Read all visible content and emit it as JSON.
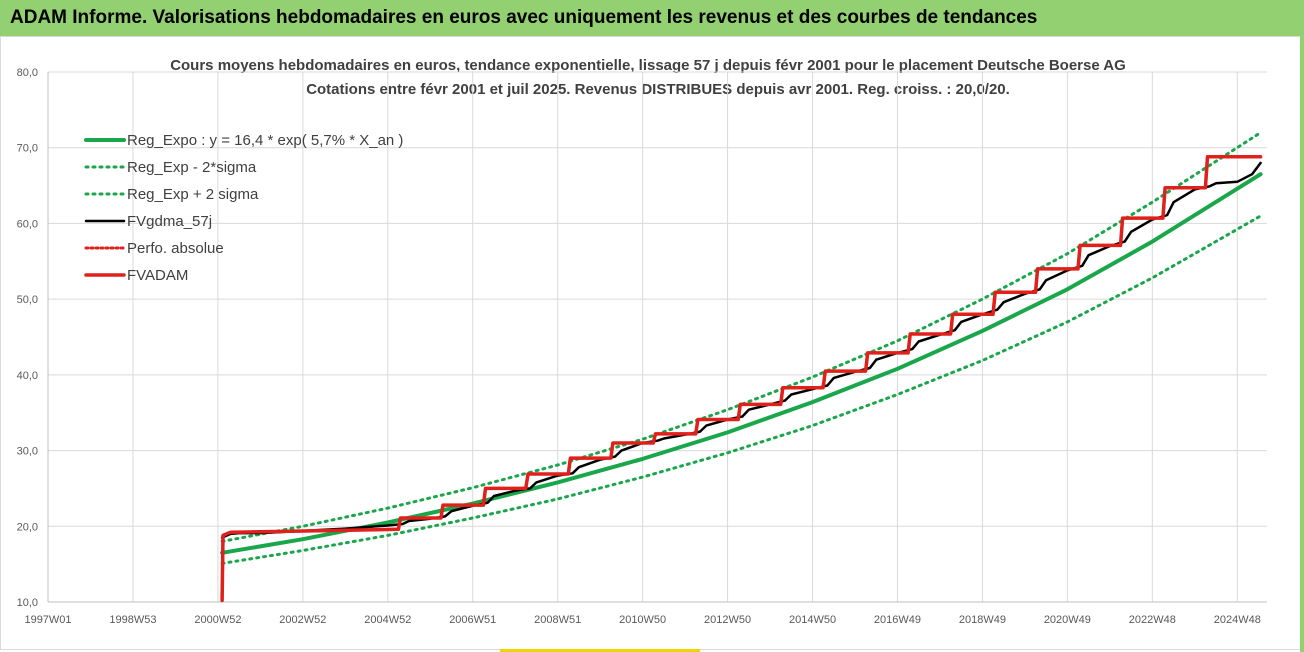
{
  "header": {
    "title": "ADAM Informe. Valorisations hebdomadaires en euros avec uniquement les revenus et des courbes de tendances"
  },
  "chart_data": {
    "type": "line",
    "title_lines": [
      "Cours moyens hebdomadaires en euros, tendance exponentielle, lissage 57 j depuis févr 2001 pour le placement Deutsche Boerse AG",
      "Cotations entre févr 2001 et juil 2025. Revenus DISTRIBUES depuis avr 2001. Reg. croiss. : 20,0/20."
    ],
    "x_tick_labels": [
      "1997W01",
      "1998W53",
      "2000W52",
      "2002W52",
      "2004W52",
      "2006W51",
      "2008W51",
      "2010W50",
      "2012W50",
      "2014W50",
      "2016W49",
      "2018W49",
      "2020W49",
      "2022W48",
      "2024W48"
    ],
    "x_tick_years": [
      1997.0,
      1999.0,
      2001.0,
      2003.0,
      2005.0,
      2007.0,
      2009.0,
      2011.0,
      2013.0,
      2015.0,
      2017.0,
      2019.0,
      2021.0,
      2023.0,
      2025.0
    ],
    "xlim": [
      1997.0,
      2025.7
    ],
    "y_tick_labels": [
      "10,0",
      "20,0",
      "30,0",
      "40,0",
      "50,0",
      "60,0",
      "70,0",
      "80,0"
    ],
    "ylim": [
      10,
      80
    ],
    "legend_position": "top-left",
    "series": [
      {
        "name": "Reg_Expo : y = 16,4 * exp( 5,7% *  X_an )",
        "color": "#1aa64a",
        "style": "solid",
        "x": [
          2001.1,
          2003,
          2005,
          2007,
          2009,
          2011,
          2013,
          2015,
          2017,
          2019,
          2021,
          2023,
          2025.55
        ],
        "y": [
          16.5,
          18.3,
          20.5,
          23.0,
          25.8,
          28.9,
          32.4,
          36.4,
          40.8,
          45.8,
          51.3,
          57.6,
          66.5
        ]
      },
      {
        "name": "Reg_Exp - 2*sigma",
        "color": "#1aa64a",
        "style": "dotted",
        "x": [
          2001.1,
          2003,
          2005,
          2007,
          2009,
          2011,
          2013,
          2015,
          2017,
          2019,
          2021,
          2023,
          2025.55
        ],
        "y": [
          15.1,
          16.8,
          18.8,
          21.1,
          23.6,
          26.5,
          29.7,
          33.3,
          37.4,
          41.9,
          47.0,
          52.8,
          61.0
        ]
      },
      {
        "name": "Reg_Exp + 2 sigma",
        "color": "#1aa64a",
        "style": "dotted",
        "x": [
          2001.1,
          2003,
          2005,
          2007,
          2009,
          2011,
          2013,
          2015,
          2017,
          2019,
          2021,
          2023,
          2025.55
        ],
        "y": [
          18.0,
          20.0,
          22.4,
          25.1,
          28.1,
          31.5,
          35.4,
          39.7,
          44.5,
          50.0,
          56.0,
          62.8,
          72.0
        ]
      },
      {
        "name": "FVgdma_57j",
        "color": "#000000",
        "style": "solid",
        "x": [
          2001.1,
          2001.3,
          2001.5,
          2002,
          2004,
          2005,
          2005.35,
          2005.5,
          2006,
          2006.35,
          2006.5,
          2007,
          2007.35,
          2007.5,
          2008,
          2008.35,
          2008.5,
          2009,
          2009.35,
          2009.5,
          2010,
          2010.35,
          2010.5,
          2011,
          2011.35,
          2011.5,
          2012,
          2012.35,
          2012.5,
          2013,
          2013.35,
          2013.5,
          2014,
          2014.35,
          2014.5,
          2015,
          2015.35,
          2015.5,
          2016,
          2016.35,
          2016.5,
          2017,
          2017.35,
          2017.5,
          2018,
          2018.35,
          2018.5,
          2019,
          2019.35,
          2019.5,
          2020,
          2020.35,
          2020.5,
          2021,
          2021.35,
          2021.5,
          2022,
          2022.35,
          2022.5,
          2023,
          2023.35,
          2023.5,
          2024,
          2024.35,
          2024.5,
          2025,
          2025.35,
          2025.55
        ],
        "y": [
          18.5,
          19.0,
          19.1,
          19.1,
          19.7,
          20.1,
          20.3,
          20.7,
          21.0,
          21.3,
          22.0,
          22.7,
          23.1,
          24.0,
          24.7,
          25.0,
          25.8,
          26.7,
          27.0,
          27.8,
          28.8,
          29.2,
          30.0,
          31.0,
          31.3,
          31.6,
          32.1,
          32.5,
          33.3,
          34.1,
          34.5,
          35.4,
          36.1,
          36.6,
          37.4,
          38.1,
          38.6,
          39.6,
          40.4,
          40.9,
          42.0,
          42.9,
          43.4,
          44.4,
          45.3,
          45.9,
          47.0,
          48.0,
          48.6,
          49.6,
          50.7,
          51.3,
          52.5,
          53.8,
          54.4,
          55.8,
          57.0,
          57.6,
          58.9,
          60.5,
          61.1,
          62.8,
          64.5,
          64.9,
          65.3,
          65.5,
          66.5,
          68.0
        ]
      },
      {
        "name": "Perfo. absolue",
        "color": "#e0201b",
        "style": "dotted",
        "x": [
          2001.1,
          2001.12,
          2001.3,
          2005.25,
          2005.3,
          2006.25,
          2006.3,
          2007.25,
          2007.3,
          2008.25,
          2008.3,
          2009.25,
          2009.3,
          2010.25,
          2010.3,
          2011.25,
          2011.3,
          2012.25,
          2012.3,
          2013.25,
          2013.3,
          2014.25,
          2014.3,
          2015.25,
          2015.3,
          2016.25,
          2016.3,
          2017.25,
          2017.3,
          2018.25,
          2018.3,
          2019.25,
          2019.3,
          2020.25,
          2020.3,
          2021.25,
          2021.3,
          2022.25,
          2022.3,
          2023.25,
          2023.3,
          2024.25,
          2024.3,
          2025.25,
          2025.3,
          2025.55
        ],
        "y": [
          10.2,
          18.8,
          19.2,
          19.6,
          21.1,
          21.1,
          22.8,
          22.8,
          25.0,
          25.0,
          26.9,
          26.9,
          29.0,
          29.0,
          31.0,
          31.0,
          32.2,
          32.2,
          34.1,
          34.1,
          36.1,
          36.1,
          38.3,
          38.3,
          40.5,
          40.5,
          42.9,
          42.9,
          45.4,
          45.4,
          48.0,
          48.0,
          50.9,
          50.9,
          54.0,
          54.0,
          57.1,
          57.1,
          60.7,
          60.7,
          64.7,
          64.7,
          68.8,
          68.8,
          68.8,
          68.8
        ]
      },
      {
        "name": "FVADAM",
        "color": "#e0201b",
        "style": "solid",
        "x": [
          2001.1,
          2001.12,
          2001.3,
          2005.25,
          2005.3,
          2006.25,
          2006.3,
          2007.25,
          2007.3,
          2008.25,
          2008.3,
          2009.25,
          2009.3,
          2010.25,
          2010.3,
          2011.25,
          2011.3,
          2012.25,
          2012.3,
          2013.25,
          2013.3,
          2014.25,
          2014.3,
          2015.25,
          2015.3,
          2016.25,
          2016.3,
          2017.25,
          2017.3,
          2018.25,
          2018.3,
          2019.25,
          2019.3,
          2020.25,
          2020.3,
          2021.25,
          2021.3,
          2022.25,
          2022.3,
          2023.25,
          2023.3,
          2024.25,
          2024.3,
          2025.25,
          2025.3,
          2025.55
        ],
        "y": [
          10.2,
          18.8,
          19.2,
          19.6,
          21.1,
          21.1,
          22.8,
          22.8,
          25.0,
          25.0,
          26.9,
          26.9,
          29.0,
          29.0,
          31.0,
          31.0,
          32.2,
          32.2,
          34.1,
          34.1,
          36.1,
          36.1,
          38.3,
          38.3,
          40.5,
          40.5,
          42.9,
          42.9,
          45.4,
          45.4,
          48.0,
          48.0,
          50.9,
          50.9,
          54.0,
          54.0,
          57.1,
          57.1,
          60.7,
          60.7,
          64.7,
          64.7,
          68.8,
          68.8,
          68.8,
          68.8
        ]
      }
    ]
  }
}
